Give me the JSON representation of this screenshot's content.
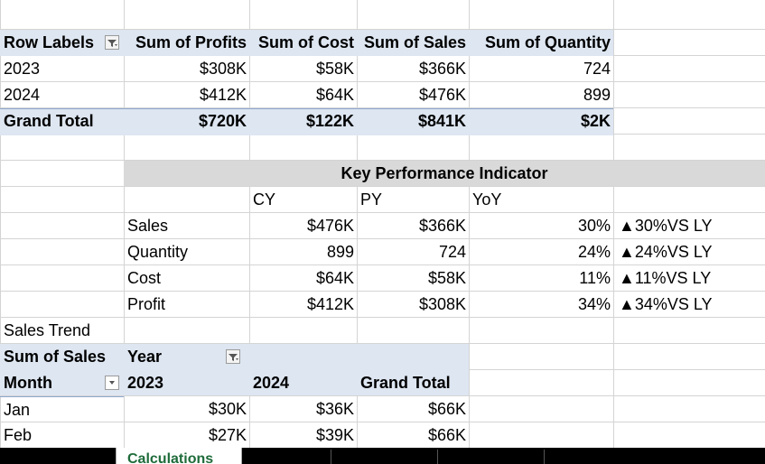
{
  "pivot1": {
    "headers": [
      "Row Labels",
      "Sum of Profits",
      "Sum of Cost",
      "Sum of Sales",
      "Sum of Quantity"
    ],
    "rows": [
      [
        "2023",
        "$308K",
        "$58K",
        "$366K",
        "724"
      ],
      [
        "2024",
        "$412K",
        "$64K",
        "$476K",
        "899"
      ]
    ],
    "total": [
      "Grand Total",
      "$720K",
      "$122K",
      "$841K",
      "$2K"
    ]
  },
  "kpi": {
    "title": "Key Performance Indicator",
    "col_headers": [
      "CY",
      "PY",
      "YoY"
    ],
    "rows": [
      {
        "label": "Sales",
        "cy": "$476K",
        "py": "$366K",
        "yoy": "30%",
        "vs": "▲30%VS LY"
      },
      {
        "label": "Quantity",
        "cy": "899",
        "py": "724",
        "yoy": "24%",
        "vs": "▲24%VS LY"
      },
      {
        "label": "Cost",
        "cy": "$64K",
        "py": "$58K",
        "yoy": "11%",
        "vs": "▲11%VS LY"
      },
      {
        "label": "Profit",
        "cy": "$412K",
        "py": "$308K",
        "yoy": "34%",
        "vs": "▲34%VS LY"
      }
    ]
  },
  "trend": {
    "section_label": "Sales Trend",
    "header1": [
      "Sum of Sales",
      "Year"
    ],
    "header2": [
      "Month",
      "2023",
      "2024",
      "Grand Total"
    ],
    "rows": [
      [
        "Jan",
        "$30K",
        "$36K",
        "$66K"
      ],
      [
        "Feb",
        "$27K",
        "$39K",
        "$66K"
      ]
    ]
  },
  "sheet_tab": {
    "label": "Calculations"
  },
  "icons": {
    "filter": "filter-dropdown-icon",
    "dropdown": "chevron-down-icon"
  },
  "colors": {
    "pivot_header": "#dde6f1",
    "kpi_title_bar": "#d9d9d9",
    "gridline": "#d4d4d4"
  }
}
